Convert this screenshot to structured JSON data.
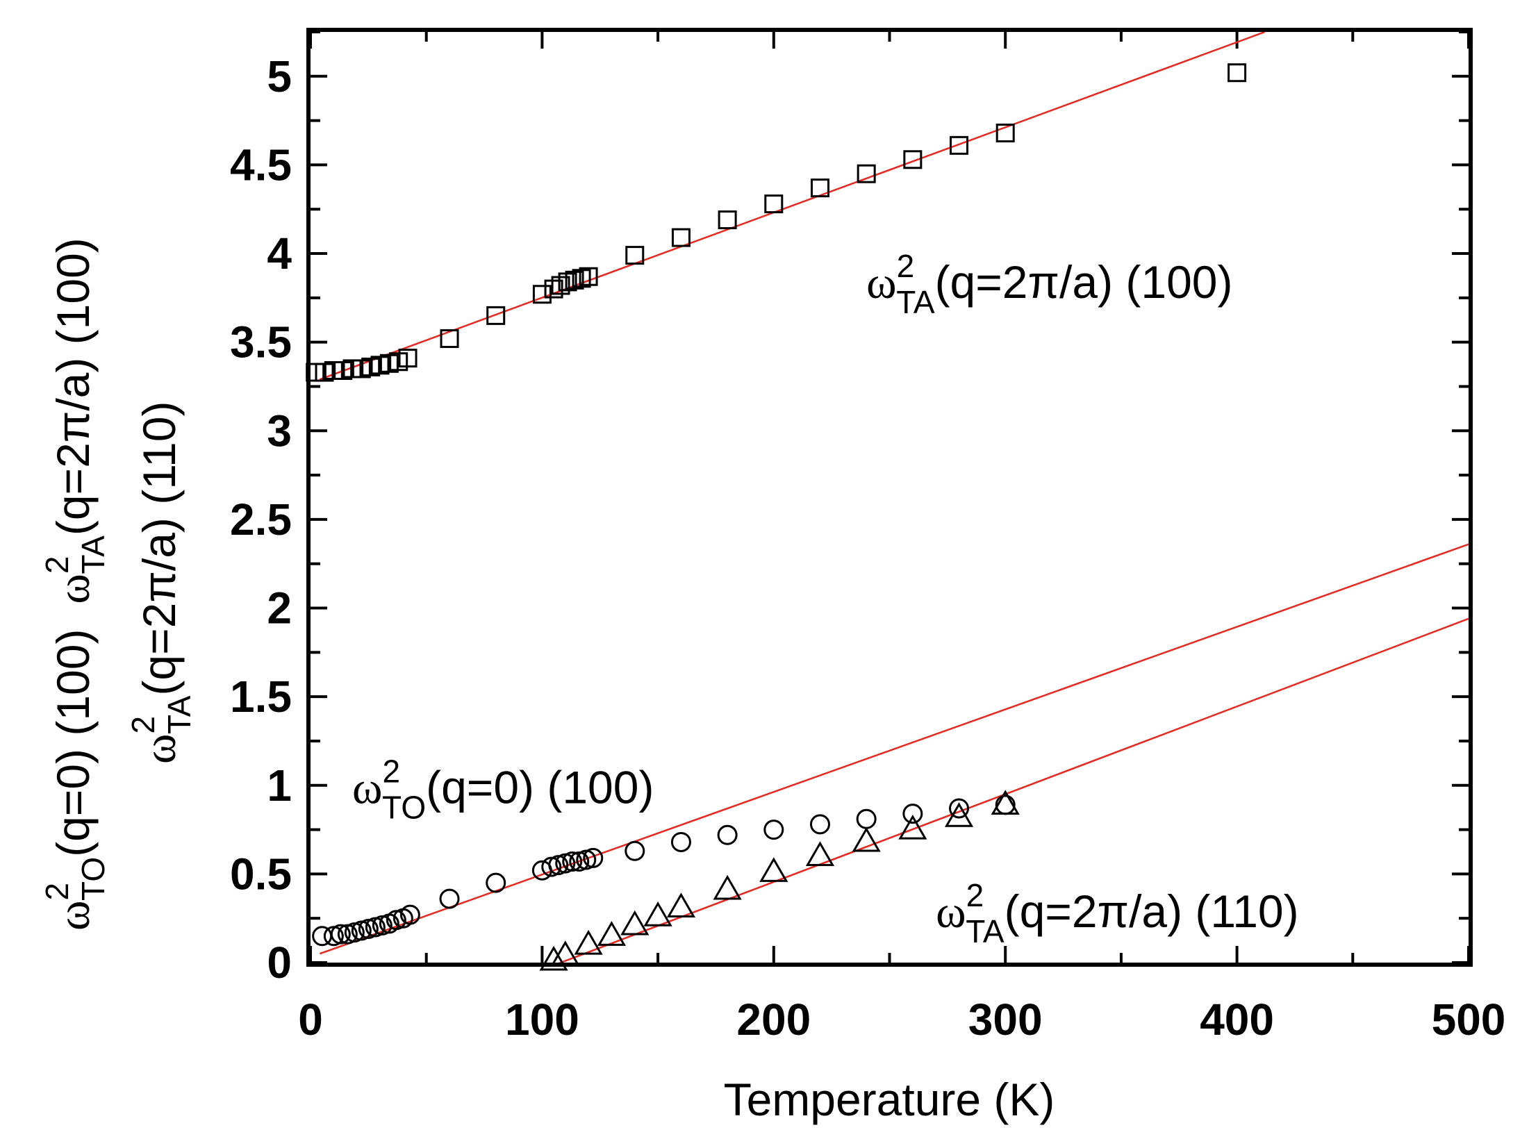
{
  "chart_data": {
    "type": "scatter",
    "xlabel": "Temperature (K)",
    "ylabel_lines": [
      {
        "omega": "ω",
        "sup": "2",
        "sub": "TO",
        "rest": "(q=0) (100)  "
      },
      {
        "omega": "ω",
        "sup": "2",
        "sub": "TA",
        "rest": "(q=2π/a) (100)"
      },
      {
        "omega": "ω",
        "sup": "2",
        "sub": "TA",
        "rest": "(q=2π/a) (110)"
      }
    ],
    "xlim": [
      0,
      500
    ],
    "ylim": [
      0,
      5.25
    ],
    "xticks": [
      0,
      100,
      200,
      300,
      400,
      500
    ],
    "xtick_labels": [
      "0",
      "100",
      "200",
      "300",
      "400",
      "500"
    ],
    "yticks": [
      0,
      0.5,
      1,
      1.5,
      2,
      2.5,
      3,
      3.5,
      4,
      4.5,
      5
    ],
    "ytick_labels": [
      "0",
      "0.5",
      "1",
      "1.5",
      "2",
      "2.5",
      "3",
      "3.5",
      "4",
      "4.5",
      "5"
    ],
    "annotations": [
      {
        "omega": "ω",
        "sup": "2",
        "sub": "TA",
        "rest": "(q=2π/a) (100)",
        "x": 240,
        "y": 3.75
      },
      {
        "omega": "ω",
        "sup": "2",
        "sub": "TO",
        "rest": "(q=0) (100)",
        "x": 18,
        "y": 0.9
      },
      {
        "omega": "ω",
        "sup": "2",
        "sub": "TA",
        "rest": "(q=2π/a) (110)",
        "x": 270,
        "y": 0.2
      }
    ],
    "series": [
      {
        "marker": "square",
        "x": [
          2,
          6,
          10,
          14,
          18,
          22,
          26,
          30,
          34,
          38,
          42,
          60,
          80,
          100,
          105,
          108,
          111,
          114,
          117,
          120,
          140,
          160,
          180,
          200,
          220,
          240,
          260,
          280,
          300,
          400
        ],
        "y": [
          3.33,
          3.33,
          3.34,
          3.34,
          3.35,
          3.35,
          3.36,
          3.37,
          3.38,
          3.39,
          3.41,
          3.52,
          3.65,
          3.77,
          3.8,
          3.82,
          3.84,
          3.85,
          3.86,
          3.87,
          3.99,
          4.09,
          4.19,
          4.28,
          4.37,
          4.45,
          4.53,
          4.61,
          4.68,
          5.02
        ]
      },
      {
        "marker": "circle",
        "x": [
          5,
          10,
          13,
          16,
          19,
          22,
          25,
          28,
          31,
          34,
          37,
          40,
          43,
          60,
          80,
          100,
          104,
          107,
          110,
          113,
          116,
          119,
          122,
          140,
          160,
          180,
          200,
          220,
          240,
          260,
          280,
          300
        ],
        "y": [
          0.15,
          0.15,
          0.16,
          0.16,
          0.17,
          0.18,
          0.19,
          0.2,
          0.21,
          0.22,
          0.24,
          0.25,
          0.27,
          0.36,
          0.45,
          0.52,
          0.54,
          0.55,
          0.56,
          0.57,
          0.57,
          0.58,
          0.59,
          0.63,
          0.68,
          0.72,
          0.75,
          0.78,
          0.81,
          0.84,
          0.87,
          0.89
        ]
      },
      {
        "marker": "triangle",
        "x": [
          105,
          110,
          120,
          130,
          140,
          150,
          160,
          180,
          200,
          220,
          240,
          260,
          280,
          300
        ],
        "y": [
          0.01,
          0.04,
          0.1,
          0.15,
          0.21,
          0.26,
          0.31,
          0.41,
          0.51,
          0.6,
          0.68,
          0.75,
          0.82,
          0.89
        ]
      }
    ],
    "fit_lines": [
      {
        "color": "#e8281e",
        "x": [
          4,
          412
        ],
        "y": [
          3.29,
          5.25
        ]
      },
      {
        "color": "#e8281e",
        "x": [
          4,
          500
        ],
        "y": [
          0.05,
          2.36
        ]
      },
      {
        "color": "#e8281e",
        "x": [
          104,
          500
        ],
        "y": [
          -0.02,
          1.94
        ]
      }
    ]
  }
}
